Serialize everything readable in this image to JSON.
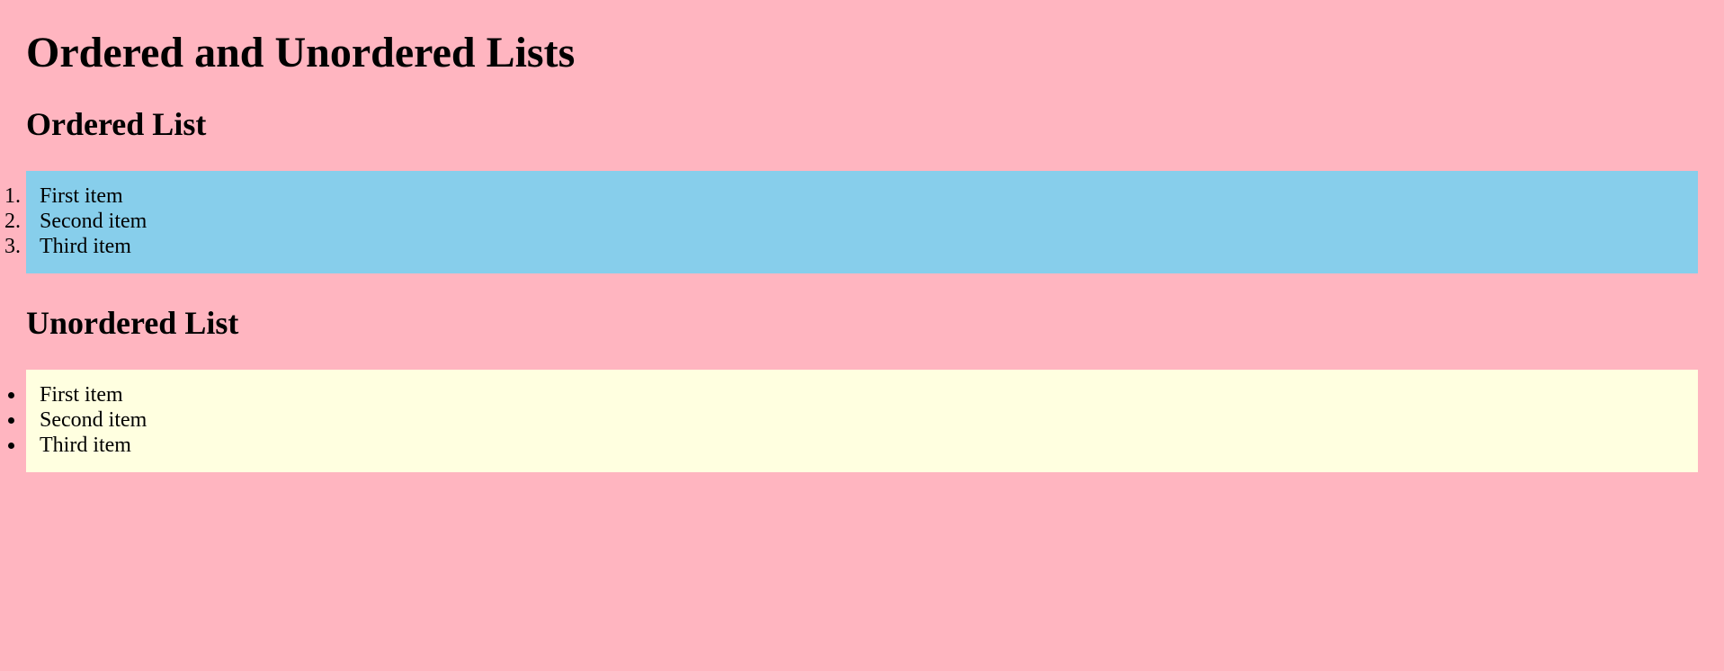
{
  "page": {
    "title": "Ordered and Unordered Lists",
    "background_color": "#ffb5c0"
  },
  "ordered_section": {
    "heading": "Ordered List",
    "background_color": "#87ceeb",
    "items": [
      "First item",
      "Second item",
      "Third item"
    ]
  },
  "unordered_section": {
    "heading": "Unordered List",
    "background_color": "#ffffe0",
    "items": [
      "First item",
      "Second item",
      "Third item"
    ]
  }
}
